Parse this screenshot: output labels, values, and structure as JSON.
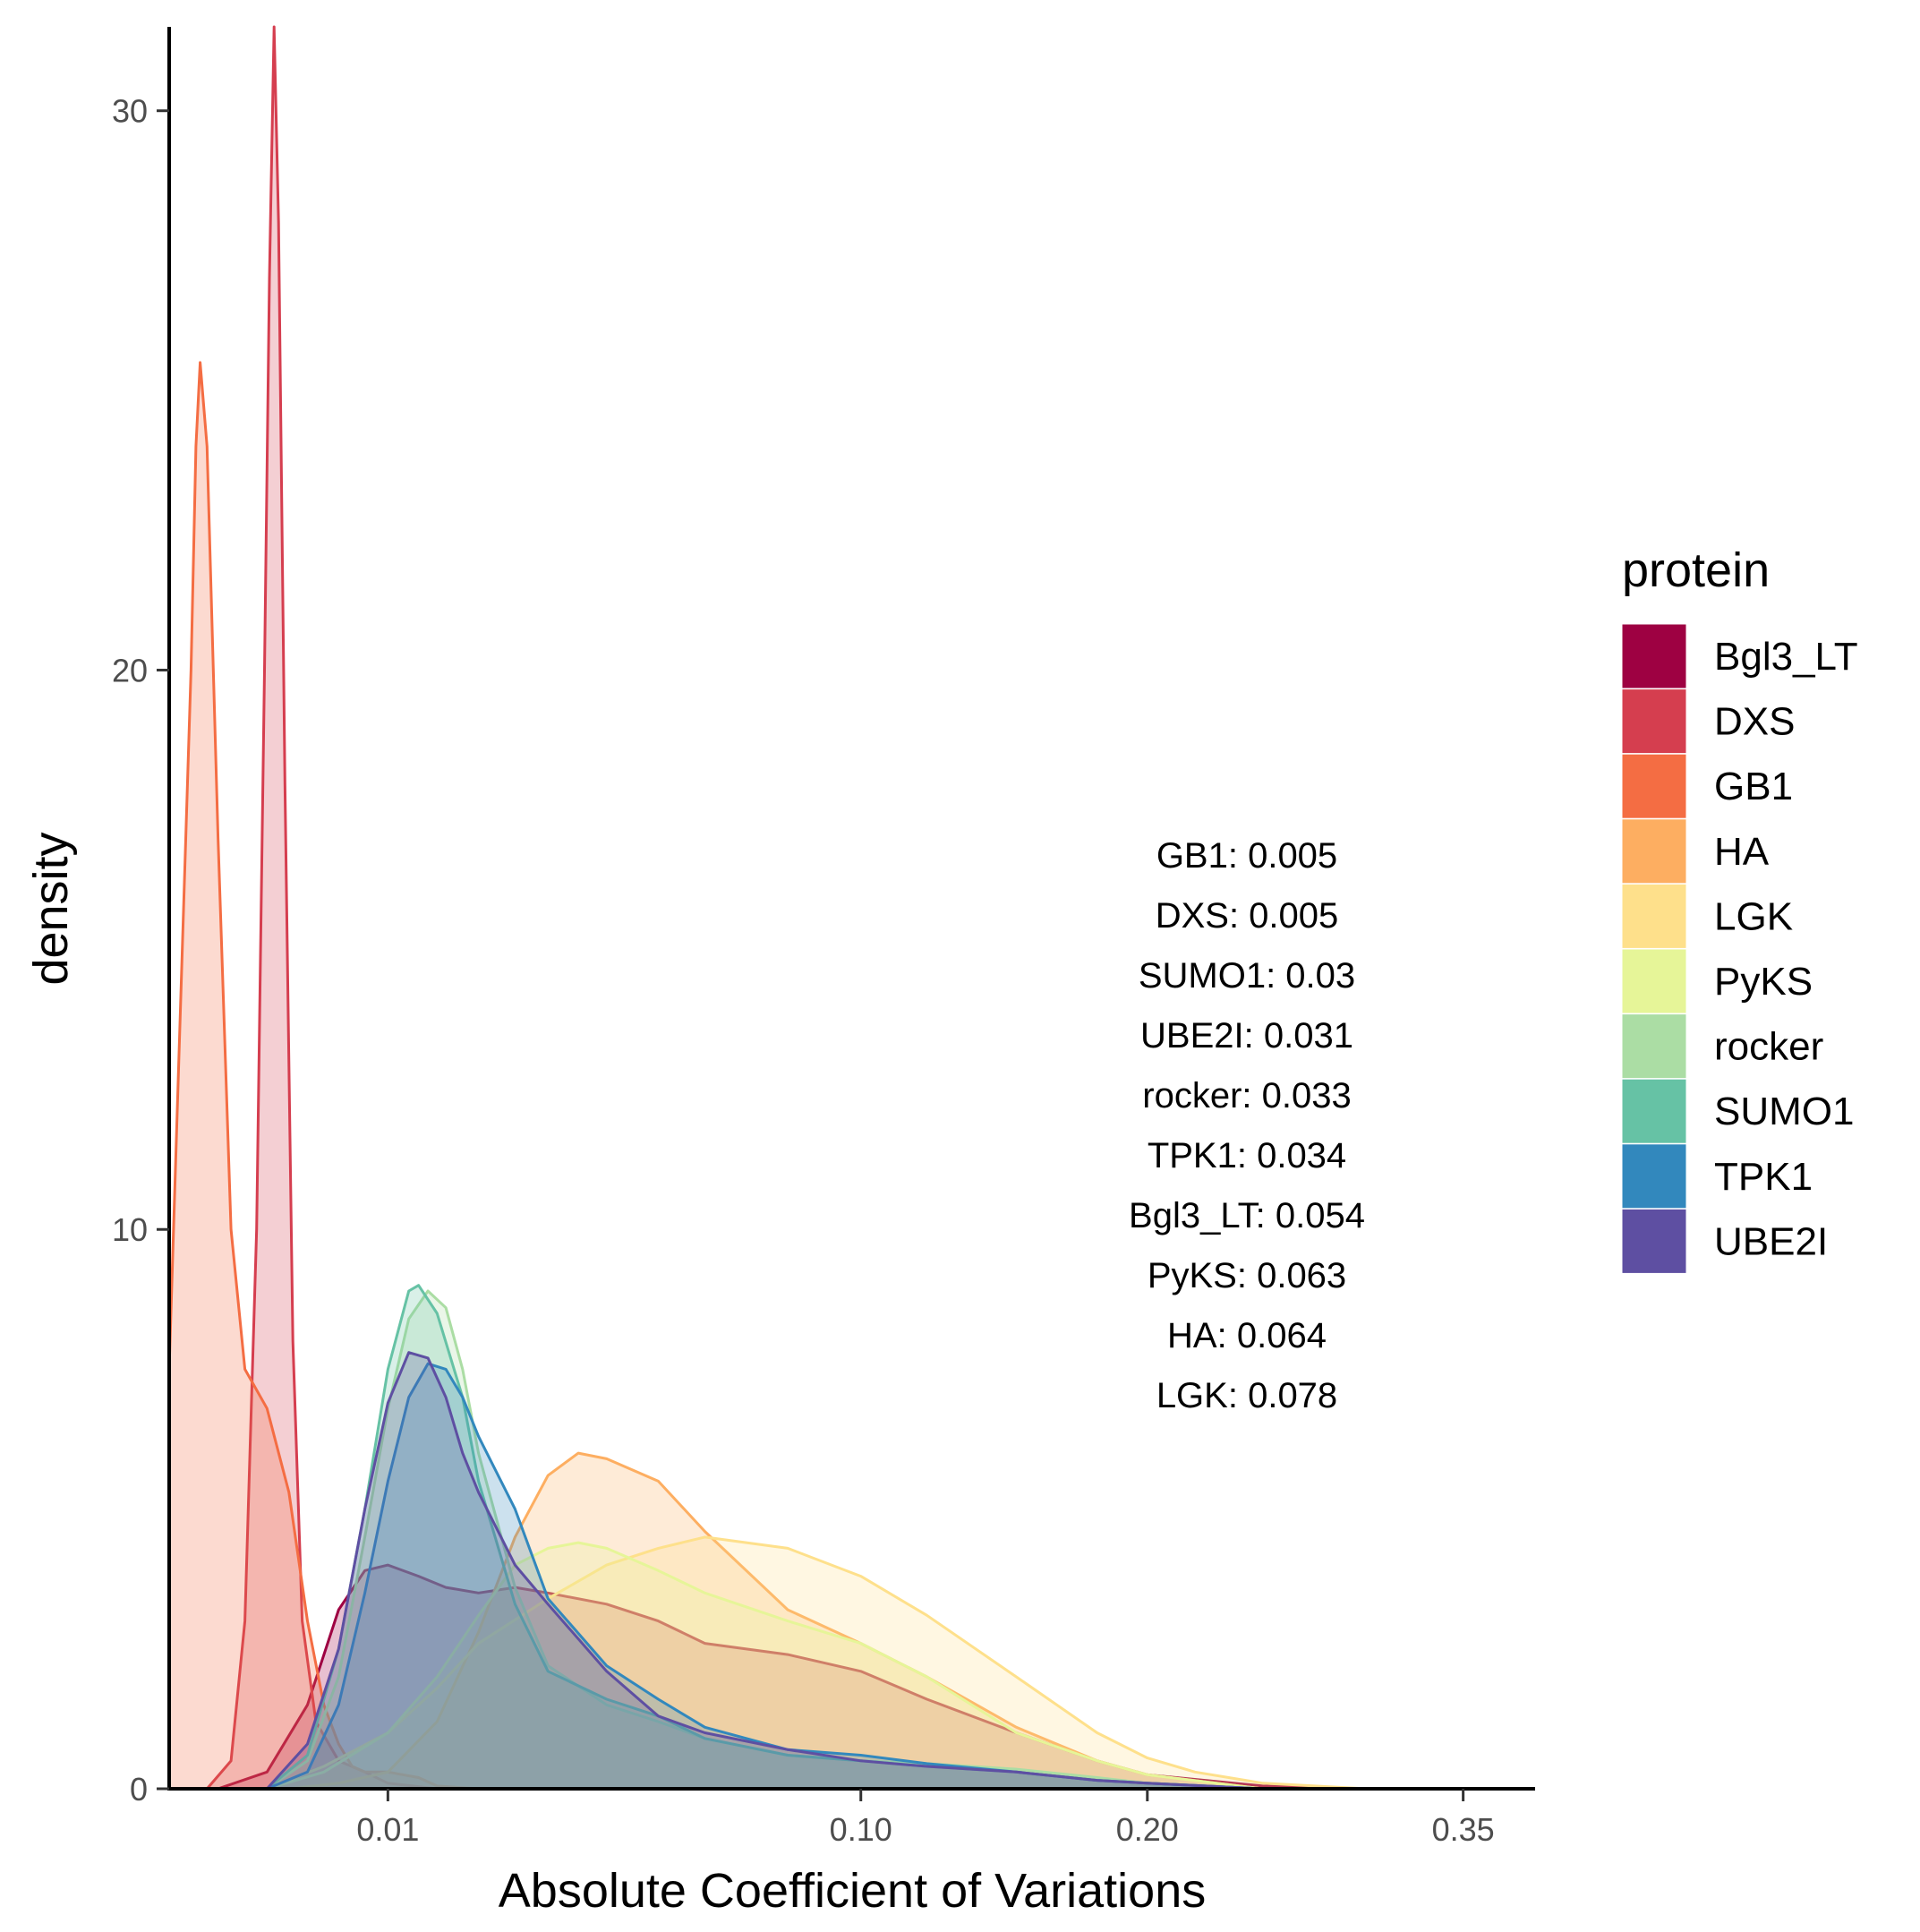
{
  "chart_data": {
    "type": "area",
    "subtype": "density",
    "xlabel": "Absolute Coefficient of Variations",
    "ylabel": "density",
    "x_scale": "sqrt",
    "xlim": [
      0,
      0.39
    ],
    "ylim": [
      0,
      31.5
    ],
    "x_ticks": [
      {
        "value": 0.01,
        "label": "0.01"
      },
      {
        "value": 0.1,
        "label": "0.10"
      },
      {
        "value": 0.2,
        "label": "0.20"
      },
      {
        "value": 0.35,
        "label": "0.35"
      }
    ],
    "y_ticks": [
      {
        "value": 0,
        "label": "0"
      },
      {
        "value": 10,
        "label": "10"
      },
      {
        "value": 20,
        "label": "20"
      },
      {
        "value": 30,
        "label": "30"
      }
    ],
    "grid": false,
    "legend": {
      "title": "protein",
      "position": "right"
    },
    "series": [
      {
        "name": "Bgl3_LT",
        "color": "#9E0142",
        "points": [
          [
            0.0005,
            0
          ],
          [
            0.002,
            0.3
          ],
          [
            0.004,
            1.5
          ],
          [
            0.006,
            3.2
          ],
          [
            0.008,
            3.9
          ],
          [
            0.01,
            4.0
          ],
          [
            0.013,
            3.8
          ],
          [
            0.016,
            3.6
          ],
          [
            0.02,
            3.5
          ],
          [
            0.025,
            3.6
          ],
          [
            0.03,
            3.5
          ],
          [
            0.04,
            3.3
          ],
          [
            0.05,
            3.0
          ],
          [
            0.06,
            2.6
          ],
          [
            0.08,
            2.4
          ],
          [
            0.1,
            2.1
          ],
          [
            0.12,
            1.6
          ],
          [
            0.15,
            1.0
          ],
          [
            0.18,
            0.5
          ],
          [
            0.2,
            0.25
          ],
          [
            0.25,
            0.05
          ],
          [
            0.3,
            0
          ]
        ]
      },
      {
        "name": "DXS",
        "color": "#D53E4F",
        "points": [
          [
            0.0003,
            0
          ],
          [
            0.0008,
            0.5
          ],
          [
            0.0012,
            3
          ],
          [
            0.0016,
            10
          ],
          [
            0.0019,
            20
          ],
          [
            0.0021,
            27
          ],
          [
            0.0023,
            31.5
          ],
          [
            0.0025,
            28
          ],
          [
            0.0028,
            18
          ],
          [
            0.0032,
            8
          ],
          [
            0.0037,
            3
          ],
          [
            0.0045,
            1.2
          ],
          [
            0.006,
            0.5
          ],
          [
            0.008,
            0.3
          ],
          [
            0.01,
            0.1
          ],
          [
            0.015,
            0
          ]
        ]
      },
      {
        "name": "GB1",
        "color": "#F46D43",
        "points": [
          [
            0,
            7.5
          ],
          [
            0.0001,
            20
          ],
          [
            0.00015,
            24
          ],
          [
            0.0002,
            25.5
          ],
          [
            0.0003,
            24
          ],
          [
            0.0005,
            17
          ],
          [
            0.0008,
            10
          ],
          [
            0.0012,
            7.5
          ],
          [
            0.002,
            6.8
          ],
          [
            0.003,
            5.3
          ],
          [
            0.004,
            3
          ],
          [
            0.005,
            1.5
          ],
          [
            0.006,
            0.8
          ],
          [
            0.007,
            0.4
          ],
          [
            0.008,
            0.3
          ],
          [
            0.01,
            0.3
          ],
          [
            0.013,
            0.2
          ],
          [
            0.015,
            0.05
          ],
          [
            0.02,
            0
          ]
        ]
      },
      {
        "name": "HA",
        "color": "#FDAE61",
        "points": [
          [
            0.003,
            0
          ],
          [
            0.006,
            0.1
          ],
          [
            0.01,
            0.3
          ],
          [
            0.015,
            1.2
          ],
          [
            0.02,
            2.8
          ],
          [
            0.025,
            4.5
          ],
          [
            0.03,
            5.6
          ],
          [
            0.035,
            6.0
          ],
          [
            0.04,
            5.9
          ],
          [
            0.05,
            5.5
          ],
          [
            0.06,
            4.6
          ],
          [
            0.08,
            3.2
          ],
          [
            0.1,
            2.6
          ],
          [
            0.12,
            2.0
          ],
          [
            0.15,
            1.1
          ],
          [
            0.18,
            0.5
          ],
          [
            0.2,
            0.25
          ],
          [
            0.25,
            0
          ]
        ]
      },
      {
        "name": "LGK",
        "color": "#FEE08B",
        "points": [
          [
            0.002,
            0
          ],
          [
            0.005,
            0.4
          ],
          [
            0.01,
            1.0
          ],
          [
            0.015,
            1.8
          ],
          [
            0.02,
            2.6
          ],
          [
            0.03,
            3.4
          ],
          [
            0.04,
            4.0
          ],
          [
            0.05,
            4.3
          ],
          [
            0.06,
            4.5
          ],
          [
            0.08,
            4.3
          ],
          [
            0.1,
            3.8
          ],
          [
            0.12,
            3.1
          ],
          [
            0.15,
            2.0
          ],
          [
            0.18,
            1.0
          ],
          [
            0.2,
            0.55
          ],
          [
            0.22,
            0.3
          ],
          [
            0.25,
            0.1
          ],
          [
            0.3,
            0
          ]
        ]
      },
      {
        "name": "PyKS",
        "color": "#E6F598",
        "points": [
          [
            0.002,
            0
          ],
          [
            0.005,
            0.3
          ],
          [
            0.01,
            1.0
          ],
          [
            0.015,
            2.0
          ],
          [
            0.02,
            3.1
          ],
          [
            0.025,
            4.0
          ],
          [
            0.03,
            4.3
          ],
          [
            0.035,
            4.4
          ],
          [
            0.04,
            4.3
          ],
          [
            0.05,
            3.9
          ],
          [
            0.06,
            3.5
          ],
          [
            0.08,
            3.0
          ],
          [
            0.1,
            2.6
          ],
          [
            0.12,
            2.0
          ],
          [
            0.15,
            1.0
          ],
          [
            0.18,
            0.5
          ],
          [
            0.2,
            0.25
          ],
          [
            0.25,
            0
          ]
        ]
      },
      {
        "name": "rocker",
        "color": "#ABDDA4",
        "points": [
          [
            0.002,
            0
          ],
          [
            0.004,
            0.5
          ],
          [
            0.006,
            2
          ],
          [
            0.008,
            4.5
          ],
          [
            0.01,
            6.8
          ],
          [
            0.012,
            8.4
          ],
          [
            0.014,
            8.9
          ],
          [
            0.016,
            8.6
          ],
          [
            0.018,
            7.5
          ],
          [
            0.02,
            6.0
          ],
          [
            0.025,
            3.6
          ],
          [
            0.03,
            2.2
          ],
          [
            0.04,
            1.5
          ],
          [
            0.05,
            1.2
          ],
          [
            0.06,
            0.9
          ],
          [
            0.08,
            0.6
          ],
          [
            0.1,
            0.5
          ],
          [
            0.12,
            0.45
          ],
          [
            0.15,
            0.35
          ],
          [
            0.18,
            0.2
          ],
          [
            0.2,
            0.1
          ],
          [
            0.25,
            0
          ]
        ]
      },
      {
        "name": "SUMO1",
        "color": "#66C2A5",
        "points": [
          [
            0.002,
            0
          ],
          [
            0.004,
            0.6
          ],
          [
            0.006,
            2.5
          ],
          [
            0.008,
            5.0
          ],
          [
            0.01,
            7.5
          ],
          [
            0.012,
            8.9
          ],
          [
            0.013,
            9.0
          ],
          [
            0.015,
            8.5
          ],
          [
            0.018,
            7.0
          ],
          [
            0.02,
            5.5
          ],
          [
            0.025,
            3.3
          ],
          [
            0.03,
            2.1
          ],
          [
            0.04,
            1.6
          ],
          [
            0.05,
            1.3
          ],
          [
            0.06,
            0.9
          ],
          [
            0.08,
            0.6
          ],
          [
            0.1,
            0.5
          ],
          [
            0.12,
            0.4
          ],
          [
            0.15,
            0.3
          ],
          [
            0.18,
            0.15
          ],
          [
            0.2,
            0.1
          ],
          [
            0.25,
            0
          ]
        ]
      },
      {
        "name": "TPK1",
        "color": "#3288BD",
        "points": [
          [
            0.002,
            0
          ],
          [
            0.004,
            0.3
          ],
          [
            0.006,
            1.5
          ],
          [
            0.008,
            3.5
          ],
          [
            0.01,
            5.5
          ],
          [
            0.012,
            7.0
          ],
          [
            0.014,
            7.6
          ],
          [
            0.016,
            7.5
          ],
          [
            0.018,
            7.0
          ],
          [
            0.02,
            6.3
          ],
          [
            0.025,
            5.0
          ],
          [
            0.03,
            3.4
          ],
          [
            0.04,
            2.2
          ],
          [
            0.05,
            1.6
          ],
          [
            0.06,
            1.1
          ],
          [
            0.08,
            0.7
          ],
          [
            0.1,
            0.6
          ],
          [
            0.12,
            0.45
          ],
          [
            0.15,
            0.3
          ],
          [
            0.18,
            0.15
          ],
          [
            0.2,
            0.1
          ],
          [
            0.25,
            0
          ]
        ]
      },
      {
        "name": "UBE2I",
        "color": "#5E4FA2",
        "points": [
          [
            0.002,
            0
          ],
          [
            0.004,
            0.8
          ],
          [
            0.006,
            2.5
          ],
          [
            0.008,
            5.0
          ],
          [
            0.01,
            6.9
          ],
          [
            0.012,
            7.8
          ],
          [
            0.014,
            7.7
          ],
          [
            0.016,
            7.0
          ],
          [
            0.018,
            6.0
          ],
          [
            0.02,
            5.3
          ],
          [
            0.025,
            4.0
          ],
          [
            0.03,
            3.3
          ],
          [
            0.04,
            2.1
          ],
          [
            0.05,
            1.3
          ],
          [
            0.06,
            1.0
          ],
          [
            0.08,
            0.7
          ],
          [
            0.1,
            0.5
          ],
          [
            0.12,
            0.4
          ],
          [
            0.15,
            0.3
          ],
          [
            0.18,
            0.15
          ],
          [
            0.2,
            0.1
          ],
          [
            0.25,
            0
          ]
        ]
      }
    ],
    "annotations": [
      "GB1: 0.005",
      "DXS: 0.005",
      "SUMO1: 0.03",
      "UBE2I: 0.031",
      "rocker: 0.033",
      "TPK1: 0.034",
      "Bgl3_LT: 0.054",
      "PyKS: 0.063",
      "HA: 0.064",
      "LGK: 0.078"
    ]
  }
}
